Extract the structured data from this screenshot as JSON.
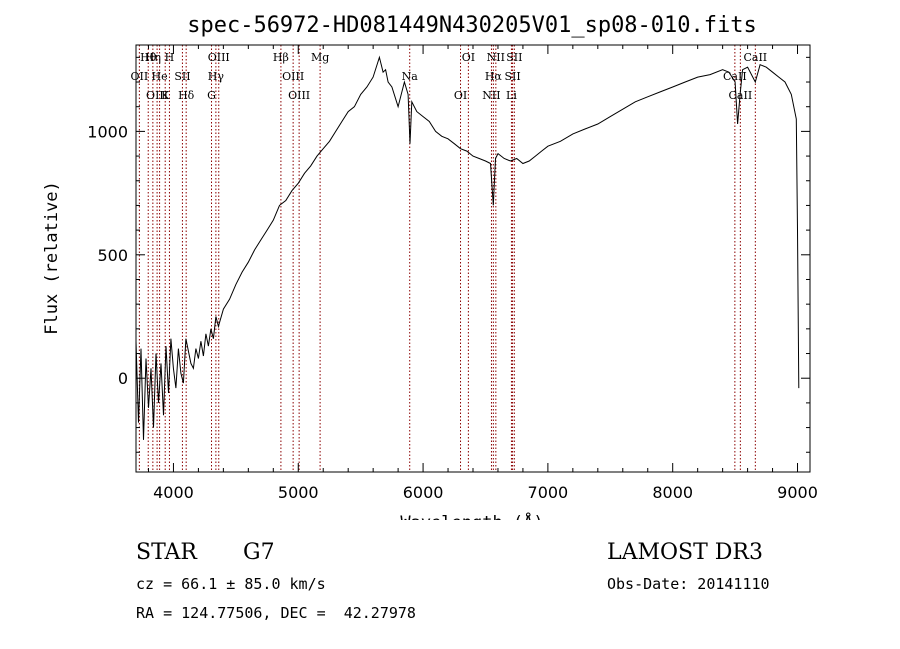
{
  "chart_data": {
    "type": "line",
    "title": "spec-56972-HD081449N430205V01_sp08-010.fits",
    "xlabel": "Wavelength (Å)",
    "ylabel": "Flux (relative)",
    "xlim": [
      3700,
      9100
    ],
    "ylim": [
      -380,
      1350
    ],
    "x_ticks": [
      4000,
      5000,
      6000,
      7000,
      8000,
      9000
    ],
    "y_ticks": [
      0,
      500,
      1000
    ],
    "series": [
      {
        "name": "flux",
        "x": [
          3700,
          3720,
          3740,
          3760,
          3780,
          3800,
          3820,
          3840,
          3860,
          3880,
          3900,
          3920,
          3940,
          3960,
          3980,
          4000,
          4020,
          4040,
          4060,
          4080,
          4100,
          4120,
          4140,
          4160,
          4180,
          4200,
          4220,
          4240,
          4260,
          4280,
          4300,
          4320,
          4340,
          4360,
          4400,
          4450,
          4500,
          4550,
          4600,
          4650,
          4700,
          4750,
          4800,
          4850,
          4900,
          4950,
          5000,
          5050,
          5100,
          5150,
          5200,
          5250,
          5300,
          5350,
          5400,
          5450,
          5500,
          5550,
          5600,
          5650,
          5680,
          5700,
          5720,
          5750,
          5800,
          5850,
          5880,
          5895,
          5910,
          5950,
          6000,
          6050,
          6100,
          6150,
          6200,
          6250,
          6300,
          6350,
          6400,
          6450,
          6500,
          6540,
          6563,
          6580,
          6600,
          6650,
          6700,
          6750,
          6800,
          6850,
          6900,
          6950,
          7000,
          7100,
          7200,
          7300,
          7400,
          7500,
          7600,
          7700,
          7800,
          7900,
          8000,
          8100,
          8200,
          8300,
          8400,
          8450,
          8500,
          8520,
          8540,
          8560,
          8600,
          8662,
          8700,
          8750,
          8800,
          8850,
          8900,
          8950,
          8990,
          9000,
          9010
        ],
        "y": [
          150,
          -180,
          120,
          -250,
          80,
          -120,
          40,
          -200,
          100,
          -100,
          60,
          -150,
          130,
          -60,
          160,
          40,
          -40,
          120,
          20,
          -20,
          160,
          110,
          60,
          40,
          120,
          80,
          150,
          90,
          180,
          130,
          200,
          160,
          250,
          210,
          280,
          320,
          380,
          430,
          470,
          520,
          560,
          600,
          640,
          700,
          720,
          760,
          790,
          830,
          860,
          900,
          930,
          960,
          1000,
          1040,
          1080,
          1100,
          1150,
          1180,
          1220,
          1300,
          1240,
          1250,
          1200,
          1180,
          1100,
          1200,
          1150,
          950,
          1120,
          1080,
          1060,
          1040,
          1000,
          980,
          970,
          950,
          930,
          920,
          900,
          890,
          880,
          870,
          700,
          890,
          910,
          890,
          880,
          890,
          870,
          880,
          900,
          920,
          940,
          960,
          990,
          1010,
          1030,
          1060,
          1090,
          1120,
          1140,
          1160,
          1180,
          1200,
          1220,
          1230,
          1250,
          1240,
          1200,
          1030,
          1150,
          1250,
          1260,
          1200,
          1270,
          1260,
          1240,
          1220,
          1200,
          1150,
          1050,
          600,
          -40
        ]
      }
    ],
    "line_markers": [
      {
        "name": "Hθ",
        "wavelength": 3798
      },
      {
        "name": "OII",
        "wavelength": 3727
      },
      {
        "name": "OIII",
        "wavelength": 3869
      },
      {
        "name": "Hη",
        "wavelength": 3835
      },
      {
        "name": "He",
        "wavelength": 3889
      },
      {
        "name": "K",
        "wavelength": 3934
      },
      {
        "name": "H",
        "wavelength": 3968
      },
      {
        "name": "SII",
        "wavelength": 4072
      },
      {
        "name": "Hδ",
        "wavelength": 4102
      },
      {
        "name": "OIII",
        "wavelength": 4363
      },
      {
        "name": "Hγ",
        "wavelength": 4340
      },
      {
        "name": "G",
        "wavelength": 4305
      },
      {
        "name": "Hβ",
        "wavelength": 4861
      },
      {
        "name": "OIII",
        "wavelength": 4959
      },
      {
        "name": "OIII",
        "wavelength": 5007
      },
      {
        "name": "Mg",
        "wavelength": 5175
      },
      {
        "name": "Na",
        "wavelength": 5893
      },
      {
        "name": "OI",
        "wavelength": 6300
      },
      {
        "name": "OI",
        "wavelength": 6363
      },
      {
        "name": "Hα",
        "wavelength": 6563
      },
      {
        "name": "NII",
        "wavelength": 6548
      },
      {
        "name": "NII",
        "wavelength": 6583
      },
      {
        "name": "SII",
        "wavelength": 6717
      },
      {
        "name": "Li",
        "wavelength": 6708
      },
      {
        "name": "SII",
        "wavelength": 6731
      },
      {
        "name": "CaII",
        "wavelength": 8498
      },
      {
        "name": "CaII",
        "wavelength": 8542
      },
      {
        "name": "CaII",
        "wavelength": 8662
      }
    ],
    "line_color": "#8b0000"
  },
  "info": {
    "classification": "STAR",
    "subclass": "G7",
    "survey": "LAMOST DR3",
    "cz": "cz = 66.1 ± 85.0 km/s",
    "obs_date": "Obs-Date: 20141110",
    "coords": "RA = 124.77506, DEC =  42.27978"
  }
}
